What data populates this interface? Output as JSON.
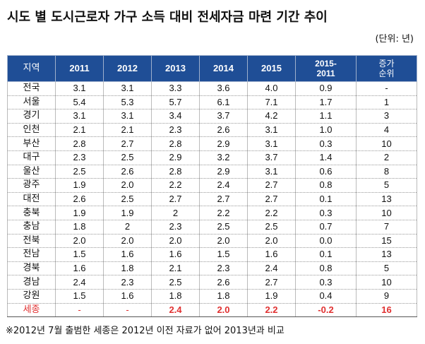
{
  "title": "시도 별 도시근로자 가구 소득 대비 전세자금 마련 기간 추이",
  "unit": "(단위: 년)",
  "headers": {
    "region": "지역",
    "y2011": "2011",
    "y2012": "2012",
    "y2013": "2013",
    "y2014": "2014",
    "y2015": "2015",
    "diff_line1": "2015-",
    "diff_line2": "2011",
    "rank_line1": "증가",
    "rank_line2": "순위"
  },
  "rows": [
    {
      "region": "전국",
      "y2011": "3.1",
      "y2012": "3.1",
      "y2013": "3.3",
      "y2014": "3.6",
      "y2015": "4.0",
      "diff": "0.9",
      "rank": "-"
    },
    {
      "region": "서울",
      "y2011": "5.4",
      "y2012": "5.3",
      "y2013": "5.7",
      "y2014": "6.1",
      "y2015": "7.1",
      "diff": "1.7",
      "rank": "1"
    },
    {
      "region": "경기",
      "y2011": "3.1",
      "y2012": "3.1",
      "y2013": "3.4",
      "y2014": "3.7",
      "y2015": "4.2",
      "diff": "1.1",
      "rank": "3"
    },
    {
      "region": "인천",
      "y2011": "2.1",
      "y2012": "2.1",
      "y2013": "2.3",
      "y2014": "2.6",
      "y2015": "3.1",
      "diff": "1.0",
      "rank": "4"
    },
    {
      "region": "부산",
      "y2011": "2.8",
      "y2012": "2.7",
      "y2013": "2.8",
      "y2014": "2.9",
      "y2015": "3.1",
      "diff": "0.3",
      "rank": "10"
    },
    {
      "region": "대구",
      "y2011": "2.3",
      "y2012": "2.5",
      "y2013": "2.9",
      "y2014": "3.2",
      "y2015": "3.7",
      "diff": "1.4",
      "rank": "2"
    },
    {
      "region": "울산",
      "y2011": "2.5",
      "y2012": "2.6",
      "y2013": "2.8",
      "y2014": "2.9",
      "y2015": "3.1",
      "diff": "0.6",
      "rank": "8"
    },
    {
      "region": "광주",
      "y2011": "1.9",
      "y2012": "2.0",
      "y2013": "2.2",
      "y2014": "2.4",
      "y2015": "2.7",
      "diff": "0.8",
      "rank": "5"
    },
    {
      "region": "대전",
      "y2011": "2.6",
      "y2012": "2.5",
      "y2013": "2.7",
      "y2014": "2.7",
      "y2015": "2.7",
      "diff": "0.1",
      "rank": "13"
    },
    {
      "region": "충북",
      "y2011": "1.9",
      "y2012": "1.9",
      "y2013": "2",
      "y2014": "2.2",
      "y2015": "2.2",
      "diff": "0.3",
      "rank": "10"
    },
    {
      "region": "충남",
      "y2011": "1.8",
      "y2012": "2",
      "y2013": "2.3",
      "y2014": "2.5",
      "y2015": "2.5",
      "diff": "0.7",
      "rank": "7"
    },
    {
      "region": "전북",
      "y2011": "2.0",
      "y2012": "2.0",
      "y2013": "2.0",
      "y2014": "2.0",
      "y2015": "2.0",
      "diff": "0.0",
      "rank": "15"
    },
    {
      "region": "전남",
      "y2011": "1.5",
      "y2012": "1.6",
      "y2013": "1.6",
      "y2014": "1.5",
      "y2015": "1.6",
      "diff": "0.1",
      "rank": "13"
    },
    {
      "region": "경북",
      "y2011": "1.6",
      "y2012": "1.8",
      "y2013": "2.1",
      "y2014": "2.3",
      "y2015": "2.4",
      "diff": "0.8",
      "rank": "5"
    },
    {
      "region": "경남",
      "y2011": "2.4",
      "y2012": "2.3",
      "y2013": "2.5",
      "y2014": "2.6",
      "y2015": "2.7",
      "diff": "0.3",
      "rank": "10"
    },
    {
      "region": "강원",
      "y2011": "1.5",
      "y2012": "1.6",
      "y2013": "1.8",
      "y2014": "1.8",
      "y2015": "1.9",
      "diff": "0.4",
      "rank": "9"
    }
  ],
  "highlight_row": {
    "region": "세종",
    "y2011": "-",
    "y2012": "-",
    "y2013": "2.4",
    "y2014": "2.0",
    "y2015": "2.2",
    "diff": "-0.2",
    "rank": "16"
  },
  "colors": {
    "header_bg": "#1f4e96",
    "highlight_text": "#e03030"
  },
  "footnote": "※2012년 7월 출범한 세종은 2012년 이전 자료가 없어 2013년과 비교"
}
